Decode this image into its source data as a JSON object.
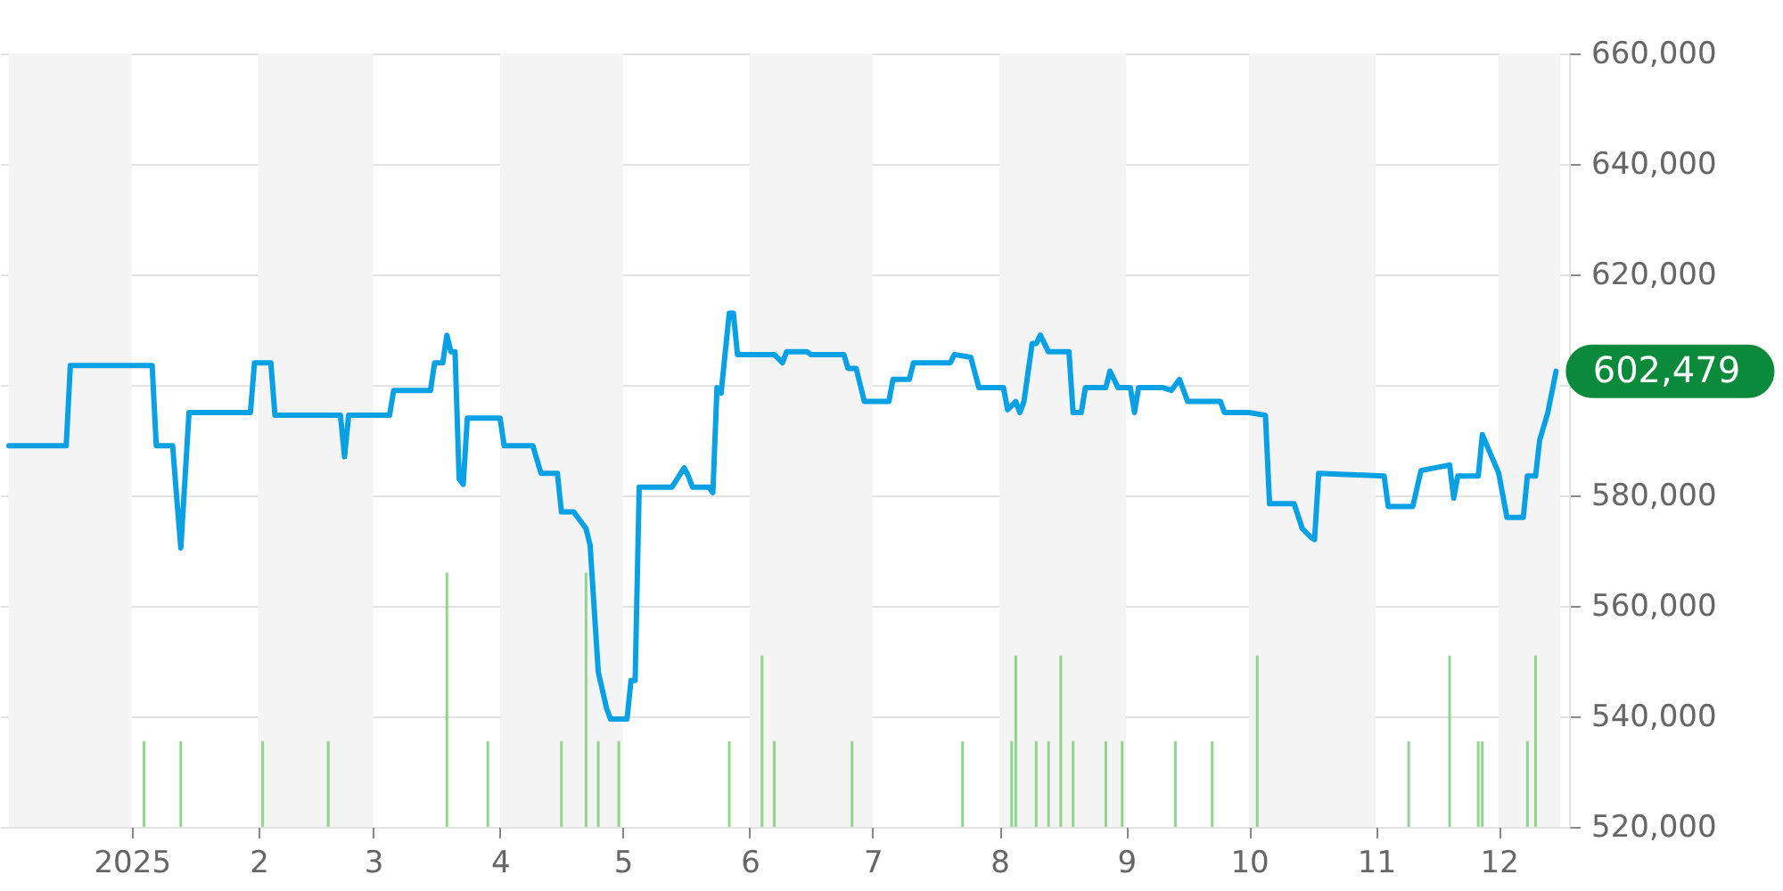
{
  "chart_data": {
    "type": "line",
    "xlim": [
      "2024-12-02",
      "2025-12-16"
    ],
    "xticks": [
      {
        "value": "2025-01-01",
        "label": "2025"
      },
      {
        "value": "2025-02-01",
        "label": "2"
      },
      {
        "value": "2025-03-01",
        "label": "3"
      },
      {
        "value": "2025-04-01",
        "label": "4"
      },
      {
        "value": "2025-05-01",
        "label": "5"
      },
      {
        "value": "2025-06-01",
        "label": "6"
      },
      {
        "value": "2025-07-01",
        "label": "7"
      },
      {
        "value": "2025-08-01",
        "label": "8"
      },
      {
        "value": "2025-09-01",
        "label": "9"
      },
      {
        "value": "2025-10-01",
        "label": "10"
      },
      {
        "value": "2025-11-01",
        "label": "11"
      },
      {
        "value": "2025-12-01",
        "label": "12"
      }
    ],
    "ylim": [
      520000,
      660000
    ],
    "yticks": [
      {
        "value": 520000,
        "label": "520,000"
      },
      {
        "value": 540000,
        "label": "540,000"
      },
      {
        "value": 560000,
        "label": "560,000"
      },
      {
        "value": 580000,
        "label": "580,000"
      },
      {
        "value": 600000,
        "label": null
      },
      {
        "value": 620000,
        "label": "620,000"
      },
      {
        "value": 640000,
        "label": "640,000"
      },
      {
        "value": 660000,
        "label": "660,000"
      }
    ],
    "grid": "y",
    "bands": [
      {
        "axis": "x",
        "from": "2024-12-02",
        "to": "2025-01-01",
        "color": "#f4f4f4"
      },
      {
        "axis": "x",
        "from": "2025-02-01",
        "to": "2025-03-01",
        "color": "#f4f4f4"
      },
      {
        "axis": "x",
        "from": "2025-04-01",
        "to": "2025-05-01",
        "color": "#f4f4f4"
      },
      {
        "axis": "x",
        "from": "2025-06-01",
        "to": "2025-07-01",
        "color": "#f4f4f4"
      },
      {
        "axis": "x",
        "from": "2025-08-01",
        "to": "2025-09-01",
        "color": "#f4f4f4"
      },
      {
        "axis": "x",
        "from": "2025-10-01",
        "to": "2025-11-01",
        "color": "#f4f4f4"
      },
      {
        "axis": "x",
        "from": "2025-12-01",
        "to": "2025-12-16",
        "color": "#f4f4f4"
      }
    ],
    "annotations": [
      {
        "text": "602,479",
        "x": "2025-12-15",
        "y": 602479
      }
    ],
    "series": [
      {
        "type": "bar",
        "color": "#90d490",
        "x": [
          "2025-01-04",
          "2025-01-13",
          "2025-02-02",
          "2025-02-18",
          "2025-03-19",
          "2025-03-29",
          "2025-04-16",
          "2025-04-22",
          "2025-04-25",
          "2025-04-30",
          "2025-05-27",
          "2025-06-04",
          "2025-06-07",
          "2025-06-26",
          "2025-07-23",
          "2025-08-04",
          "2025-08-05",
          "2025-08-10",
          "2025-08-13",
          "2025-08-16",
          "2025-08-19",
          "2025-08-27",
          "2025-08-31",
          "2025-09-13",
          "2025-09-22",
          "2025-10-03",
          "2025-11-09",
          "2025-11-19",
          "2025-11-26",
          "2025-11-27",
          "2025-12-08",
          "2025-12-10"
        ],
        "values": [
          535500,
          535500,
          535500,
          535500,
          566000,
          535500,
          535500,
          566000,
          535500,
          535500,
          535500,
          551000,
          535500,
          535500,
          535500,
          535500,
          551000,
          535500,
          535500,
          551000,
          535500,
          535500,
          535500,
          535500,
          535500,
          551000,
          535500,
          551000,
          535500,
          535500,
          535500,
          551000
        ]
      },
      {
        "color": "#0aa0e4",
        "x": [
          "2024-12-02",
          "2024-12-16",
          "2024-12-17",
          "2025-01-06",
          "2025-01-07",
          "2025-01-11",
          "2025-01-12",
          "2025-01-13",
          "2025-01-15",
          "2025-01-30",
          "2025-01-31",
          "2025-02-04",
          "2025-02-05",
          "2025-02-21",
          "2025-02-22",
          "2025-02-23",
          "2025-03-05",
          "2025-03-06",
          "2025-03-15",
          "2025-03-16",
          "2025-03-18",
          "2025-03-19",
          "2025-03-20",
          "2025-03-21",
          "2025-03-22",
          "2025-03-23",
          "2025-03-24",
          "2025-04-01",
          "2025-04-02",
          "2025-04-09",
          "2025-04-11",
          "2025-04-15",
          "2025-04-16",
          "2025-04-19",
          "2025-04-20",
          "2025-04-22",
          "2025-04-23",
          "2025-04-25",
          "2025-04-27",
          "2025-04-28",
          "2025-05-02",
          "2025-05-03",
          "2025-05-04",
          "2025-05-05",
          "2025-05-13",
          "2025-05-16",
          "2025-05-17",
          "2025-05-18",
          "2025-05-22",
          "2025-05-23",
          "2025-05-24",
          "2025-05-25",
          "2025-05-27",
          "2025-05-28",
          "2025-05-29",
          "2025-06-07",
          "2025-06-09",
          "2025-06-10",
          "2025-06-15",
          "2025-06-16",
          "2025-06-24",
          "2025-06-25",
          "2025-06-27",
          "2025-06-29",
          "2025-07-05",
          "2025-07-06",
          "2025-07-10",
          "2025-07-11",
          "2025-07-20",
          "2025-07-21",
          "2025-07-25",
          "2025-07-27",
          "2025-08-02",
          "2025-08-03",
          "2025-08-05",
          "2025-08-06",
          "2025-08-07",
          "2025-08-09",
          "2025-08-10",
          "2025-08-11",
          "2025-08-13",
          "2025-08-18",
          "2025-08-19",
          "2025-08-21",
          "2025-08-22",
          "2025-08-27",
          "2025-08-28",
          "2025-08-30",
          "2025-09-02",
          "2025-09-03",
          "2025-09-04",
          "2025-09-10",
          "2025-09-12",
          "2025-09-14",
          "2025-09-16",
          "2025-09-24",
          "2025-09-25",
          "2025-10-01",
          "2025-10-05",
          "2025-10-06",
          "2025-10-12",
          "2025-10-14",
          "2025-10-16",
          "2025-10-17",
          "2025-10-18",
          "2025-11-03",
          "2025-11-04",
          "2025-11-10",
          "2025-11-12",
          "2025-11-19",
          "2025-11-20",
          "2025-11-21",
          "2025-11-26",
          "2025-11-27",
          "2025-12-01",
          "2025-12-03",
          "2025-12-07",
          "2025-12-08",
          "2025-12-10",
          "2025-12-11",
          "2025-12-13",
          "2025-12-15"
        ],
        "values": [
          589000,
          589000,
          603500,
          603500,
          589000,
          589000,
          579500,
          570500,
          595000,
          595000,
          604000,
          604000,
          594500,
          594500,
          587000,
          594500,
          594500,
          599000,
          599000,
          604000,
          604000,
          609000,
          606000,
          606000,
          583000,
          582000,
          594000,
          594000,
          589000,
          589000,
          584000,
          584000,
          577000,
          577000,
          576000,
          574000,
          571000,
          548000,
          541500,
          539500,
          539500,
          546500,
          546500,
          581500,
          581500,
          585000,
          583500,
          581500,
          581500,
          580500,
          599500,
          598500,
          613000,
          613000,
          605500,
          605500,
          604000,
          606000,
          606000,
          605500,
          605500,
          603000,
          603000,
          597000,
          597000,
          601000,
          601000,
          604000,
          604000,
          605500,
          605000,
          599500,
          599500,
          595500,
          597000,
          595000,
          597000,
          607500,
          607500,
          609000,
          606000,
          606000,
          595000,
          595000,
          599500,
          599500,
          602500,
          599500,
          599500,
          595000,
          599500,
          599500,
          599000,
          601000,
          597000,
          597000,
          595000,
          595000,
          594500,
          578500,
          578500,
          574000,
          572500,
          572000,
          584000,
          583500,
          578000,
          578000,
          584500,
          585500,
          579500,
          583500,
          583500,
          591000,
          584000,
          576000,
          576000,
          583500,
          583500,
          590000,
          595000,
          602479
        ]
      }
    ]
  }
}
